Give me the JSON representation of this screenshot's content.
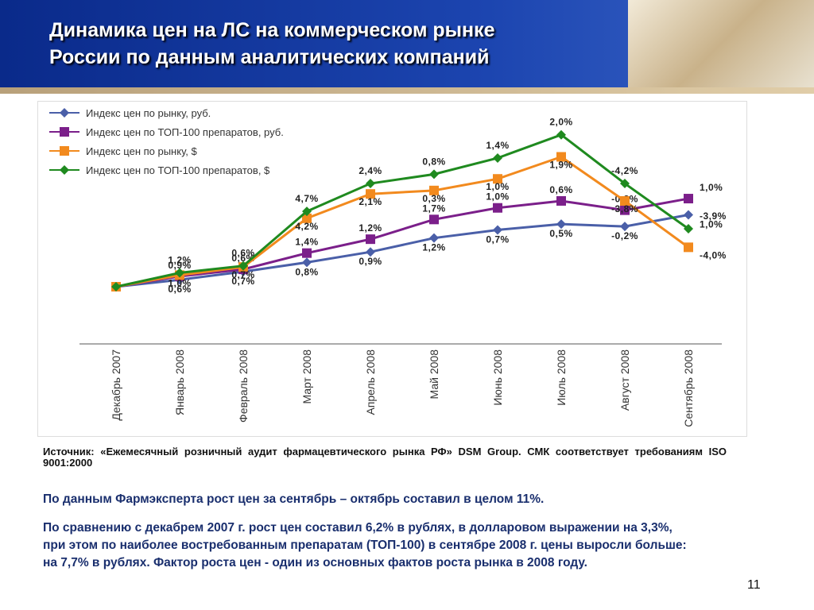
{
  "header": {
    "title": [
      "Динамика цен на ЛС на коммерческом рынке",
      "России по данным аналитических компаний"
    ]
  },
  "chart_data": {
    "type": "line",
    "categories": [
      "Декабрь 2007",
      "Январь 2008",
      "Февраль 2008",
      "Март 2008",
      "Апрель 2008",
      "Май 2008",
      "Июнь 2008",
      "Июль 2008",
      "Август 2008",
      "Сентябрь 2008"
    ],
    "series": [
      {
        "name": "Индекс цен по рынку, руб.",
        "color": "#4a5fa8",
        "marker": "diamond",
        "values": [
          0,
          0.6,
          0.7,
          0.8,
          0.9,
          1.2,
          0.7,
          0.5,
          -0.2,
          1.0
        ],
        "value_labels": [
          null,
          "0,6%",
          "0,7%",
          "0,8%",
          "0,9%",
          "1,2%",
          "0,7%",
          "0,5%",
          "-0,2%",
          "1,0%"
        ]
      },
      {
        "name": "Индекс цен по ТОП-100 препаратов, руб.",
        "color": "#7b1f8a",
        "marker": "square",
        "values": [
          0,
          0.9,
          0.6,
          1.4,
          1.2,
          1.7,
          1.0,
          0.6,
          -0.8,
          1.0
        ],
        "value_labels": [
          null,
          "0,9%",
          "0,6%",
          "1,4%",
          "1,2%",
          "1,7%",
          "1,0%",
          "0,6%",
          "-0,8%",
          "1,0%"
        ]
      },
      {
        "name": "Индекс цен по рынку, $",
        "color": "#f28a1e",
        "marker": "square",
        "values": [
          0,
          1.0,
          0.7,
          4.2,
          2.1,
          0.3,
          1.0,
          1.9,
          -3.8,
          -4.0
        ],
        "value_labels": [
          null,
          "1,0%",
          "0,7%",
          "4,2%",
          "2,1%",
          "0,3%",
          "1,0%",
          "1,9%",
          "-3,8%",
          "-4,0%"
        ]
      },
      {
        "name": "Индекс цен по ТОП-100 препаратов, $",
        "color": "#1f8a1f",
        "marker": "diamond",
        "values": [
          0,
          1.2,
          0.6,
          4.7,
          2.4,
          0.8,
          1.4,
          2.0,
          -4.2,
          -3.9
        ],
        "value_labels": [
          null,
          "1,2%",
          "0,6%",
          "4,7%",
          "2,4%",
          "0,8%",
          "1,4%",
          "2,0%",
          "-4,2%",
          "-3,9%"
        ]
      }
    ],
    "legend": "top-left"
  },
  "source": "Источник: «Ежемесячный розничный аудит фармацевтического рынка РФ» DSM Group. СМК соответствует требованиям ISO 9001:2000",
  "paragraphs": [
    "По данным Фармэксперта рост цен за сентябрь – октябрь составил в целом 11%.",
    "По сравнению с декабрем 2007 г. рост цен составил 6,2% в рублях, в долларовом выражении на 3,3%, при этом по наиболее востребованным препаратам  (ТОП-100) в сентябре 2008 г.  цены выросли больше: на 7,7% в рублях. Фактор роста цен - один из основных фактов роста рынка в 2008 году."
  ],
  "page_number": "11"
}
